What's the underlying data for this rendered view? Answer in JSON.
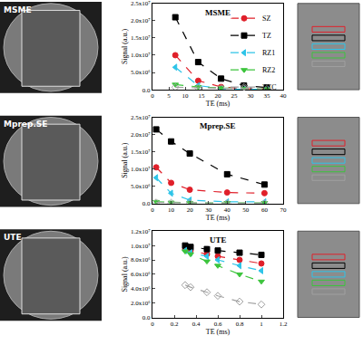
{
  "chart_data": [
    {
      "type": "scatter",
      "title": "MSME",
      "x_label": "TE (ms)",
      "y_label": "Signal (a.u.)",
      "x": [
        7,
        14,
        21,
        28,
        35
      ],
      "xlim": [
        0,
        40
      ],
      "xticks": [
        0,
        5,
        10,
        15,
        20,
        25,
        30,
        35,
        40
      ],
      "ylim": [
        0,
        25000000
      ],
      "yticks": [
        {
          "value": 0,
          "label": "0.0"
        },
        {
          "value": 5000000,
          "label": "5.0x10⁶"
        },
        {
          "value": 10000000,
          "label": "1.0x10⁷"
        },
        {
          "value": 15000000,
          "label": "1.5x10⁷"
        },
        {
          "value": 20000000,
          "label": "2.0x10⁷"
        },
        {
          "value": 25000000,
          "label": "2.5x10⁷"
        }
      ],
      "grid": false,
      "line_style": "dashed",
      "legend": "upper right",
      "series": [
        {
          "name": "SZ",
          "color": "#e0202a",
          "marker": "circle",
          "values": [
            10000000,
            2600000,
            800000,
            300000,
            200000
          ]
        },
        {
          "name": "TZ",
          "color": "#000000",
          "marker": "square",
          "values": [
            21000000,
            8000000,
            3200000,
            1200000,
            600000
          ]
        },
        {
          "name": "RZ1",
          "color": "#2ec4e8",
          "marker": "triangle-left",
          "values": [
            6500000,
            1200000,
            300000,
            100000,
            100000
          ]
        },
        {
          "name": "RZ2",
          "color": "#3cc43c",
          "marker": "triangle-down",
          "values": [
            1500000,
            800000,
            500000,
            300000,
            200000
          ]
        },
        {
          "name": "ZCC",
          "color": "#a0a0a0",
          "marker": "diamond-open",
          "values": [
            700000,
            500000,
            400000,
            300000,
            200000
          ]
        }
      ]
    },
    {
      "type": "scatter",
      "title": "Mprep.SE",
      "x_label": "TE (ms)",
      "y_label": "Signal (a.u.)",
      "x": [
        2,
        10,
        20,
        40,
        60
      ],
      "xlim": [
        0,
        70
      ],
      "xticks": [
        0,
        10,
        20,
        30,
        40,
        50,
        60,
        70
      ],
      "ylim": [
        0,
        25000000
      ],
      "yticks": [
        {
          "value": 0,
          "label": "0.0"
        },
        {
          "value": 5000000,
          "label": "5.0x10⁶"
        },
        {
          "value": 10000000,
          "label": "1.0x10⁷"
        },
        {
          "value": 15000000,
          "label": "1.5x10⁷"
        },
        {
          "value": 20000000,
          "label": "2.0x10⁷"
        },
        {
          "value": 25000000,
          "label": "2.5x10⁷"
        }
      ],
      "grid": false,
      "line_style": "dashed",
      "series": [
        {
          "name": "SZ",
          "color": "#e0202a",
          "marker": "circle",
          "values": [
            10500000,
            6000000,
            4000000,
            3200000,
            3000000
          ]
        },
        {
          "name": "TZ",
          "color": "#000000",
          "marker": "square",
          "values": [
            21500000,
            18000000,
            14500000,
            8500000,
            5500000
          ]
        },
        {
          "name": "RZ1",
          "color": "#2ec4e8",
          "marker": "triangle-left",
          "values": [
            7500000,
            3000000,
            1000000,
            500000,
            500000
          ]
        },
        {
          "name": "RZ2",
          "color": "#3cc43c",
          "marker": "triangle-down",
          "values": [
            500000,
            300000,
            200000,
            200000,
            200000
          ]
        },
        {
          "name": "ZCC",
          "color": "#a0a0a0",
          "marker": "diamond-open",
          "values": [
            300000,
            200000,
            200000,
            100000,
            100000
          ]
        }
      ]
    },
    {
      "type": "scatter",
      "title": "UTE",
      "x_label": "TE (ms)",
      "y_label": "Signal (a.u.)",
      "x": [
        0.3,
        0.35,
        0.5,
        0.6,
        0.8,
        1.0
      ],
      "xlim": [
        0,
        1.2
      ],
      "xticks": [
        0,
        0.2,
        0.4,
        0.6,
        0.8,
        1,
        1.2
      ],
      "ylim": [
        0,
        12000000
      ],
      "yticks": [
        {
          "value": 0,
          "label": "0.0"
        },
        {
          "value": 2000000,
          "label": "2.0x10⁶"
        },
        {
          "value": 4000000,
          "label": "4.0x10⁶"
        },
        {
          "value": 6000000,
          "label": "6.0x10⁶"
        },
        {
          "value": 8000000,
          "label": "8.0x10⁶"
        },
        {
          "value": 10000000,
          "label": "1.0x10⁷"
        },
        {
          "value": 12000000,
          "label": "1.2x10⁷"
        }
      ],
      "grid": false,
      "line_style": "dashed",
      "series": [
        {
          "name": "SZ",
          "color": "#e0202a",
          "marker": "circle",
          "values": [
            9500000,
            9300000,
            8800000,
            8500000,
            8000000,
            7500000
          ]
        },
        {
          "name": "TZ",
          "color": "#000000",
          "marker": "square",
          "values": [
            10000000,
            9800000,
            9500000,
            9300000,
            9000000,
            8700000
          ]
        },
        {
          "name": "RZ1",
          "color": "#2ec4e8",
          "marker": "triangle-left",
          "values": [
            9300000,
            9000000,
            8500000,
            8000000,
            7200000,
            6500000
          ]
        },
        {
          "name": "RZ2",
          "color": "#3cc43c",
          "marker": "triangle-down",
          "values": [
            9200000,
            8800000,
            7800000,
            7200000,
            6000000,
            5000000
          ]
        },
        {
          "name": "ZCC",
          "color": "#a0a0a0",
          "marker": "diamond-open",
          "values": [
            4500000,
            4200000,
            3500000,
            3000000,
            2200000,
            1800000
          ]
        }
      ]
    }
  ]
}
